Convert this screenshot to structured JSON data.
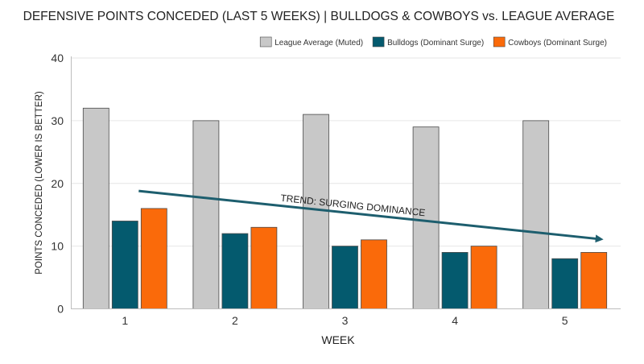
{
  "chart_data": {
    "type": "bar",
    "title": "DEFENSIVE POINTS CONCEDED (LAST 5 WEEKS) | BULLDOGS & COWBOYS vs. LEAGUE AVERAGE",
    "xlabel": "WEEK",
    "ylabel": "POINTS CONCEDED (LOWER IS BETTER)",
    "categories": [
      "1",
      "2",
      "3",
      "4",
      "5"
    ],
    "ylim": [
      0,
      40
    ],
    "yticks": [
      0,
      10,
      20,
      30,
      40
    ],
    "grid": true,
    "legend_position": "top-right",
    "series": [
      {
        "name": "League Average (Muted)",
        "color": "#c8c8c8",
        "values": [
          32,
          30,
          31,
          29,
          30
        ]
      },
      {
        "name": "Bulldogs (Dominant Surge)",
        "color": "#045a6e",
        "values": [
          14,
          12,
          10,
          9,
          8
        ]
      },
      {
        "name": "Cowboys (Dominant Surge)",
        "color": "#fa6a0a",
        "values": [
          16,
          13,
          11,
          10,
          9
        ]
      }
    ],
    "annotation": {
      "text": "TREND: SURGING DOMINANCE",
      "color": "#1d5e6e",
      "from": {
        "x": "1",
        "y": 18.8
      },
      "to": {
        "x": "5",
        "y": 11.1
      }
    }
  }
}
